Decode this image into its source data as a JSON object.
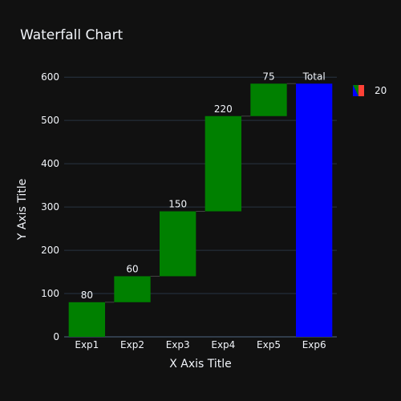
{
  "chart_data": {
    "type": "waterfall",
    "title": "Waterfall Chart",
    "xlabel": "X Axis Title",
    "ylabel": "Y Axis Title",
    "categories": [
      "Exp1",
      "Exp2",
      "Exp3",
      "Exp4",
      "Exp5",
      "Exp6"
    ],
    "measure": [
      "relative",
      "relative",
      "relative",
      "relative",
      "relative",
      "total"
    ],
    "values": [
      80,
      60,
      150,
      220,
      75,
      585
    ],
    "text": [
      "80",
      "60",
      "150",
      "220",
      "75",
      "Total"
    ],
    "ylim": [
      0,
      630
    ],
    "yticks": [
      0,
      100,
      200,
      300,
      400,
      500,
      600
    ],
    "grid": true,
    "legend": {
      "position": "top-right",
      "entries": [
        "20"
      ]
    },
    "colors": {
      "increasing": "#008000",
      "total": "#0000ff",
      "background": "#111111",
      "grid": "#283442"
    }
  }
}
